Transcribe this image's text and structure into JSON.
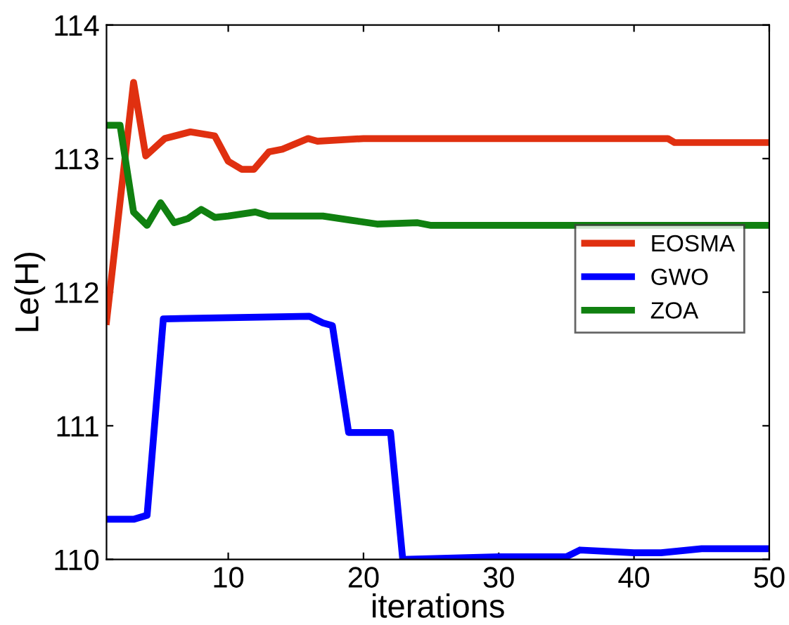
{
  "chart_data": {
    "type": "line",
    "xlabel": "iterations",
    "ylabel": "Le(H)",
    "xlim": [
      1,
      50
    ],
    "ylim": [
      110,
      114
    ],
    "xticks": [
      10,
      20,
      30,
      40,
      50
    ],
    "yticks": [
      110,
      111,
      112,
      113,
      114
    ],
    "grid": false,
    "legend": "center right",
    "marker": "none",
    "line_style": "solid",
    "series": [
      {
        "name": "EOSMA",
        "color": "#e03010",
        "x": [
          1,
          3,
          3.9,
          5.3,
          7.2,
          9,
          10,
          11,
          11.9,
          13,
          14,
          15.9,
          16.6,
          20,
          30,
          42.5,
          43,
          50
        ],
        "values": [
          111.78,
          113.57,
          113.02,
          113.15,
          113.2,
          113.17,
          112.98,
          112.92,
          112.92,
          113.05,
          113.07,
          113.15,
          113.13,
          113.15,
          113.15,
          113.15,
          113.12,
          113.12
        ]
      },
      {
        "name": "GWO",
        "color": "#0000ff",
        "x": [
          1,
          3,
          4,
          5.2,
          16,
          17,
          17.7,
          18.9,
          22,
          22.9,
          30,
          35,
          36,
          40,
          42,
          45,
          50
        ],
        "values": [
          110.3,
          110.3,
          110.33,
          111.8,
          111.82,
          111.77,
          111.75,
          110.95,
          110.95,
          110.0,
          110.02,
          110.02,
          110.07,
          110.05,
          110.05,
          110.08,
          110.08
        ]
      },
      {
        "name": "ZOA",
        "color": "#108010",
        "x": [
          1,
          2,
          3,
          4,
          5,
          6,
          7,
          8,
          9,
          10,
          12,
          13,
          17,
          19,
          21,
          24,
          25,
          50
        ],
        "values": [
          113.25,
          113.25,
          112.6,
          112.5,
          112.67,
          112.52,
          112.55,
          112.62,
          112.56,
          112.57,
          112.6,
          112.57,
          112.57,
          112.54,
          112.51,
          112.52,
          112.5,
          112.5
        ]
      }
    ]
  }
}
